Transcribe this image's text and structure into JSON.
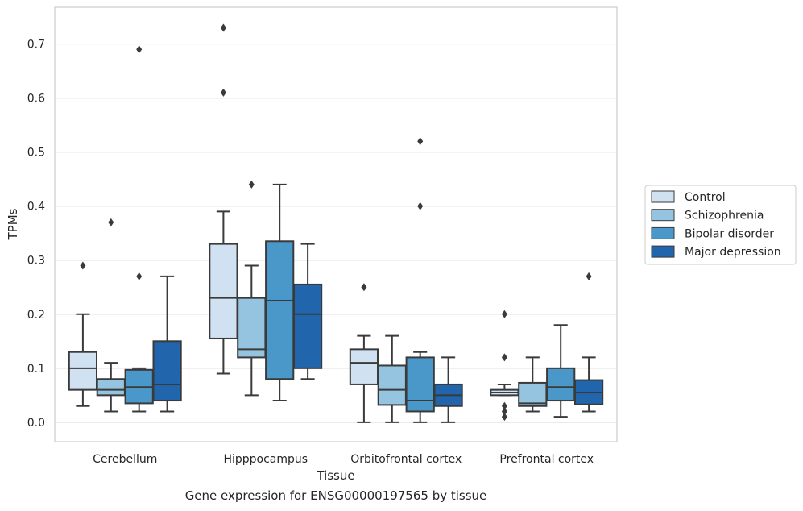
{
  "caption": "Gene expression for ENSG00000197565 by tissue",
  "chart_data": {
    "type": "box",
    "xlabel": "Tissue",
    "ylabel": "TPMs",
    "ylim": [
      -0.036,
      0.768
    ],
    "yticks": [
      "0.0",
      "0.1",
      "0.2",
      "0.3",
      "0.4",
      "0.5",
      "0.6",
      "0.7"
    ],
    "grid": true,
    "legend_position": "right",
    "categories": [
      "Cerebellum",
      "Hipppocampus",
      "Orbitofrontal cortex",
      "Prefrontal cortex"
    ],
    "series": [
      {
        "name": "Control",
        "color": "#d0e1f2",
        "boxes": [
          {
            "whislo": 0.03,
            "q1": 0.06,
            "med": 0.1,
            "q3": 0.13,
            "whishi": 0.2,
            "fliers": [
              0.29
            ]
          },
          {
            "whislo": 0.09,
            "q1": 0.155,
            "med": 0.23,
            "q3": 0.33,
            "whishi": 0.39,
            "fliers": [
              0.61,
              0.73
            ]
          },
          {
            "whislo": 0.0,
            "q1": 0.07,
            "med": 0.11,
            "q3": 0.135,
            "whishi": 0.16,
            "fliers": [
              0.25
            ]
          },
          {
            "whislo": 0.05,
            "q1": 0.05,
            "med": 0.055,
            "q3": 0.06,
            "whishi": 0.07,
            "fliers": [
              0.01,
              0.02,
              0.03,
              0.12,
              0.2
            ]
          }
        ]
      },
      {
        "name": "Schizophrenia",
        "color": "#94c4df",
        "boxes": [
          {
            "whislo": 0.02,
            "q1": 0.05,
            "med": 0.06,
            "q3": 0.08,
            "whishi": 0.11,
            "fliers": [
              0.37
            ]
          },
          {
            "whislo": 0.05,
            "q1": 0.12,
            "med": 0.135,
            "q3": 0.23,
            "whishi": 0.29,
            "fliers": [
              0.44
            ]
          },
          {
            "whislo": 0.0,
            "q1": 0.032,
            "med": 0.06,
            "q3": 0.105,
            "whishi": 0.16,
            "fliers": []
          },
          {
            "whislo": 0.02,
            "q1": 0.03,
            "med": 0.035,
            "q3": 0.073,
            "whishi": 0.12,
            "fliers": []
          }
        ]
      },
      {
        "name": "Bipolar disorder",
        "color": "#4a98c9",
        "boxes": [
          {
            "whislo": 0.02,
            "q1": 0.035,
            "med": 0.065,
            "q3": 0.097,
            "whishi": 0.1,
            "fliers": [
              0.27,
              0.69
            ]
          },
          {
            "whislo": 0.04,
            "q1": 0.08,
            "med": 0.225,
            "q3": 0.335,
            "whishi": 0.44,
            "fliers": []
          },
          {
            "whislo": 0.0,
            "q1": 0.02,
            "med": 0.04,
            "q3": 0.12,
            "whishi": 0.13,
            "fliers": [
              0.4,
              0.52
            ]
          },
          {
            "whislo": 0.01,
            "q1": 0.04,
            "med": 0.065,
            "q3": 0.1,
            "whishi": 0.18,
            "fliers": []
          }
        ]
      },
      {
        "name": "Major depression",
        "color": "#2166ac",
        "boxes": [
          {
            "whislo": 0.02,
            "q1": 0.04,
            "med": 0.07,
            "q3": 0.15,
            "whishi": 0.27,
            "fliers": []
          },
          {
            "whislo": 0.08,
            "q1": 0.1,
            "med": 0.2,
            "q3": 0.255,
            "whishi": 0.33,
            "fliers": []
          },
          {
            "whislo": 0.0,
            "q1": 0.03,
            "med": 0.05,
            "q3": 0.07,
            "whishi": 0.12,
            "fliers": []
          },
          {
            "whislo": 0.02,
            "q1": 0.033,
            "med": 0.055,
            "q3": 0.078,
            "whishi": 0.12,
            "fliers": [
              0.27
            ]
          }
        ]
      }
    ]
  }
}
